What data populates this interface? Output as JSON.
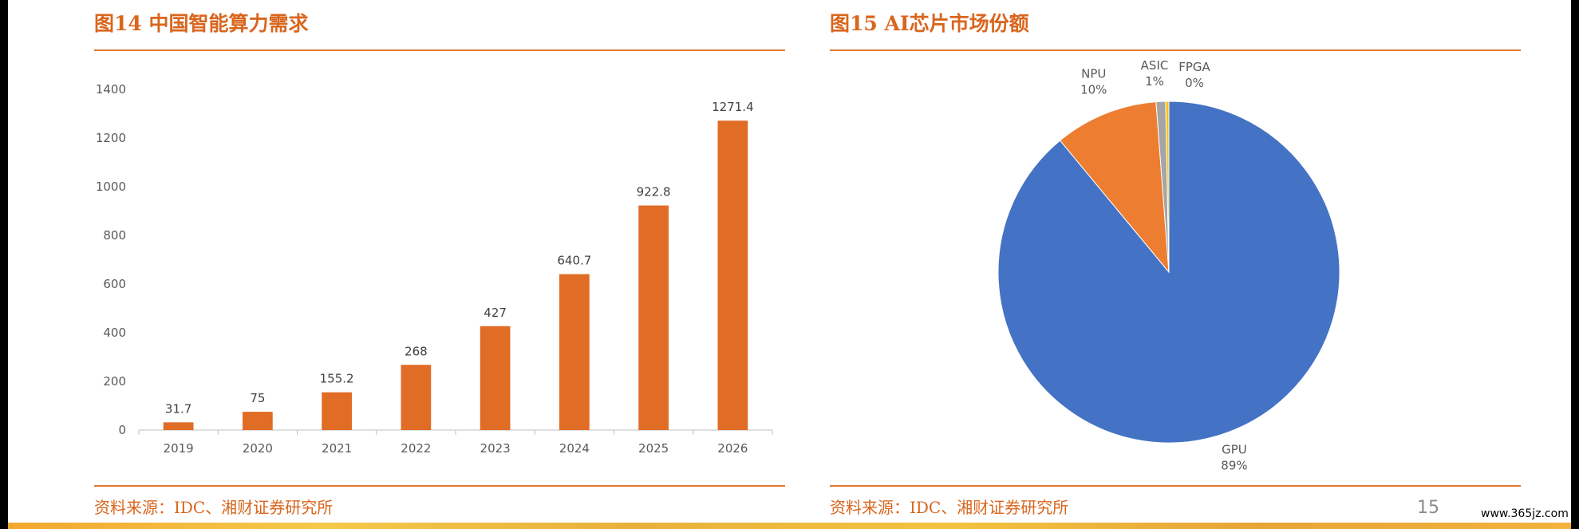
{
  "figures": [
    {
      "title": "图14 中国智能算力需求",
      "source": "资料来源：IDC、湘财证券研究所"
    },
    {
      "title": "图15 AI芯片市场份额",
      "source": "资料来源：IDC、湘财证券研究所"
    }
  ],
  "page_number": "15",
  "watermark": "www.365jz.com",
  "colors": {
    "accent": "#d9661e",
    "bar": "#e06c26",
    "rule": "#e07a2e"
  },
  "chart_data": [
    {
      "type": "bar",
      "title": "图14 中国智能算力需求",
      "categories": [
        "2019",
        "2020",
        "2021",
        "2022",
        "2023",
        "2024",
        "2025",
        "2026"
      ],
      "values": [
        31.7,
        75,
        155.2,
        268,
        427,
        640.7,
        922.8,
        1271.4
      ],
      "data_labels": [
        "31.7",
        "75",
        "155.2",
        "268",
        "427",
        "640.7",
        "922.8",
        "1271.4"
      ],
      "yticks": [
        0,
        200,
        400,
        600,
        800,
        1000,
        1200,
        1400
      ],
      "ylim": [
        0,
        1400
      ],
      "xlabel": "",
      "ylabel": "",
      "grid": false,
      "color": "#e06c26"
    },
    {
      "type": "pie",
      "title": "图15 AI芯片市场份额",
      "slices": [
        {
          "label": "GPU",
          "percent_label": "89%",
          "value": 89.0,
          "color": "#4472c4"
        },
        {
          "label": "NPU",
          "percent_label": "10%",
          "value": 9.8,
          "color": "#ed7d31"
        },
        {
          "label": "ASIC",
          "percent_label": "1%",
          "value": 0.9,
          "color": "#a5a5a5"
        },
        {
          "label": "FPGA",
          "percent_label": "0%",
          "value": 0.3,
          "color": "#ffc000"
        }
      ],
      "start": "12 o'clock",
      "direction": "clockwise",
      "legend": "none"
    }
  ]
}
